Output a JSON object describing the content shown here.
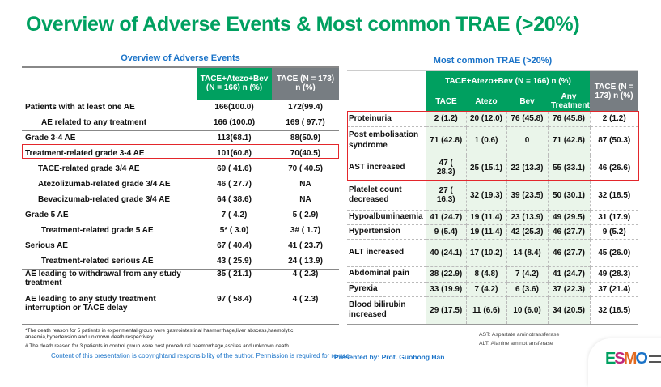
{
  "title": "Overview of Adverse Events & Most common TRAE (>20%)",
  "left": {
    "subtitle": "Overview of Adverse Events",
    "headers": [
      "TACE+Atezo+Bev (N = 166) n (%)",
      "TACE (N = 173) n (%)"
    ],
    "rows": [
      {
        "label": "Patients with at least one AE",
        "a": "166(100.0)",
        "b": "172(99.4)"
      },
      {
        "label": "AE related to any treatment",
        "a": "166 (100.0)",
        "b": "169 ( 97.7)"
      },
      {
        "label": "Grade 3-4 AE",
        "a": "113(68.1)",
        "b": "88(50.9)"
      },
      {
        "label": "Treatment-related grade 3-4 AE",
        "a": "101(60.8)",
        "b": "70(40.5)"
      },
      {
        "label": "TACE-related grade 3/4 AE",
        "a": "69 ( 41.6)",
        "b": "70 ( 40.5)"
      },
      {
        "label": "Atezolizumab-related grade 3/4 AE",
        "a": "46 ( 27.7)",
        "b": "NA"
      },
      {
        "label": "Bevacizumab-related grade 3/4 AE",
        "a": "64 ( 38.6)",
        "b": "NA"
      },
      {
        "label": "Grade 5 AE",
        "a": "7 ( 4.2)",
        "b": "5 ( 2.9)"
      },
      {
        "label": "Treatment-related grade 5 AE",
        "a": "5* ( 3.0)",
        "b": "3# ( 1.7)"
      },
      {
        "label": "Serious AE",
        "a": "67 ( 40.4)",
        "b": "41 ( 23.7)"
      },
      {
        "label": "Treatment-related serious AE",
        "a": "43 ( 25.9)",
        "b": "24 ( 13.9)"
      },
      {
        "label": "AE leading to withdrawal from any study treatment",
        "a": "35 ( 21.1)",
        "b": "4 ( 2.3)"
      },
      {
        "label": "AE leading to any study treatment interruption or TACE delay",
        "a": "97 ( 58.4)",
        "b": "4 ( 2.3)"
      }
    ],
    "footnotes": [
      "*The death reason for 5 patients in experimental group were  gastrointestinal haemorrhage,liver abscess,haemolytic anaemia,hypertension and unknown death respectively.",
      "# The death reason for 3 patients in control group were post procedural haemorrhage,ascites and unknown death."
    ]
  },
  "right": {
    "subtitle": "Most common TRAE (>20%)",
    "group_header": "TACE+Atezo+Bev (N = 166) n (%)",
    "control_header": "TACE (N = 173) n (%)",
    "subheaders": [
      "TACE",
      "Atezo",
      "Bev",
      "Any Treatment"
    ],
    "rows": [
      {
        "label": "Proteinuria",
        "v": [
          "2 (1.2)",
          "20 (12.0)",
          "76 (45.8)",
          "76 (45.8)",
          "2 (1.2)"
        ]
      },
      {
        "label": "Post embolisation syndrome",
        "v": [
          "71 (42.8)",
          "1 (0.6)",
          "0",
          "71 (42.8)",
          "87 (50.3)"
        ]
      },
      {
        "label": "AST increased",
        "v": [
          "47 ( 28.3)",
          "25 (15.1)",
          "22 (13.3)",
          "55 (33.1)",
          "46 (26.6)"
        ]
      },
      {
        "label": "Platelet count decreased",
        "v": [
          "27 ( 16.3)",
          "32 (19.3)",
          "39 (23.5)",
          "50 (30.1)",
          "32 (18.5)"
        ]
      },
      {
        "label": "Hypoalbuminaemia",
        "v": [
          "41 (24.7)",
          "19 (11.4)",
          "23 (13.9)",
          "49 (29.5)",
          "31 (17.9)"
        ]
      },
      {
        "label": "Hypertension",
        "v": [
          "9 (5.4)",
          "19 (11.4)",
          "42 (25.3)",
          "46 (27.7)",
          "9 (5.2)"
        ]
      },
      {
        "label": "ALT increased",
        "v": [
          "40 (24.1)",
          "17 (10.2)",
          "14 (8.4)",
          "46 (27.7)",
          "45 (26.0)"
        ]
      },
      {
        "label": "Abdominal pain",
        "v": [
          "38 (22.9)",
          "8 (4.8)",
          "7 (4.2)",
          "41 (24.7)",
          "49 (28.3)"
        ]
      },
      {
        "label": "Pyrexia",
        "v": [
          "33 (19.9)",
          "7 (4.2)",
          "6 (3.6)",
          "37 (22.3)",
          "37 (21.4)"
        ]
      },
      {
        "label": "Blood bilirubin increased",
        "v": [
          "29 (17.5)",
          "11 (6.6)",
          "10 (6.0)",
          "34 (20.5)",
          "32 (18.5)"
        ]
      }
    ],
    "abbreviations": [
      "AST: Aspartate aminotransferase",
      "ALT: Alanine aminotransferase"
    ]
  },
  "footer": {
    "copyright": "Content of this presentation is copyrightand responsibility of the author. Permission is required for re-use.",
    "presenter": "Presented by: Prof. Guohong Han",
    "logo": "ESMO"
  },
  "colors": {
    "title_green": "#00a060",
    "subtitle_blue": "#1a73c8",
    "header_gray": "#777d82",
    "highlight_red": "#e3262b"
  }
}
